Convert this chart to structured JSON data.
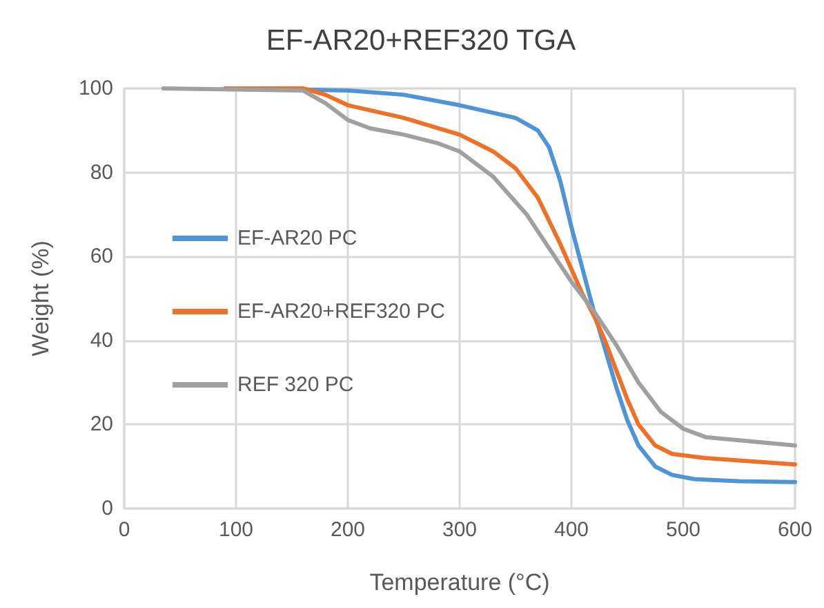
{
  "chart_data": {
    "type": "line",
    "title": "EF-AR20+REF320 TGA",
    "xlabel": "Temperature (°C)",
    "ylabel": "Weight (%)",
    "xlim": [
      0,
      600
    ],
    "xticks": [
      0,
      100,
      200,
      300,
      400,
      500,
      600
    ],
    "ylim": [
      0,
      100
    ],
    "yticks": [
      0,
      20,
      40,
      60,
      80,
      100
    ],
    "grid": true,
    "legend": "left",
    "marker": "none",
    "line_style": "solid",
    "series": [
      {
        "name": "EF-AR20 PC",
        "color": "#4e94d6",
        "x": [
          100,
          200,
          250,
          300,
          350,
          370,
          380,
          390,
          400,
          410,
          420,
          430,
          440,
          450,
          460,
          475,
          490,
          510,
          550,
          600
        ],
        "values": [
          100,
          99.5,
          98.5,
          96,
          93,
          90,
          86,
          78,
          67,
          57,
          47,
          38,
          29,
          21,
          15,
          10,
          8,
          7,
          6.5,
          6.3
        ]
      },
      {
        "name": "EF-AR20+REF320 PC",
        "color": "#ed7128",
        "x": [
          90,
          160,
          180,
          200,
          250,
          300,
          330,
          350,
          370,
          390,
          410,
          420,
          430,
          440,
          450,
          460,
          475,
          490,
          520,
          600
        ],
        "values": [
          100,
          100,
          98.5,
          96,
          93,
          89,
          85,
          81,
          74,
          63,
          51,
          46,
          40,
          33,
          26,
          20,
          15,
          13,
          12,
          10.5
        ]
      },
      {
        "name": "REF 320 PC",
        "color": "#a0a0a0",
        "x": [
          35,
          160,
          180,
          200,
          220,
          250,
          280,
          300,
          330,
          360,
          380,
          400,
          420,
          440,
          460,
          480,
          500,
          520,
          560,
          600
        ],
        "values": [
          100,
          99.5,
          96.5,
          92.5,
          90.5,
          89,
          87,
          85,
          79,
          70,
          62,
          54,
          47,
          39,
          30,
          23,
          19,
          17,
          16,
          15
        ]
      }
    ]
  }
}
